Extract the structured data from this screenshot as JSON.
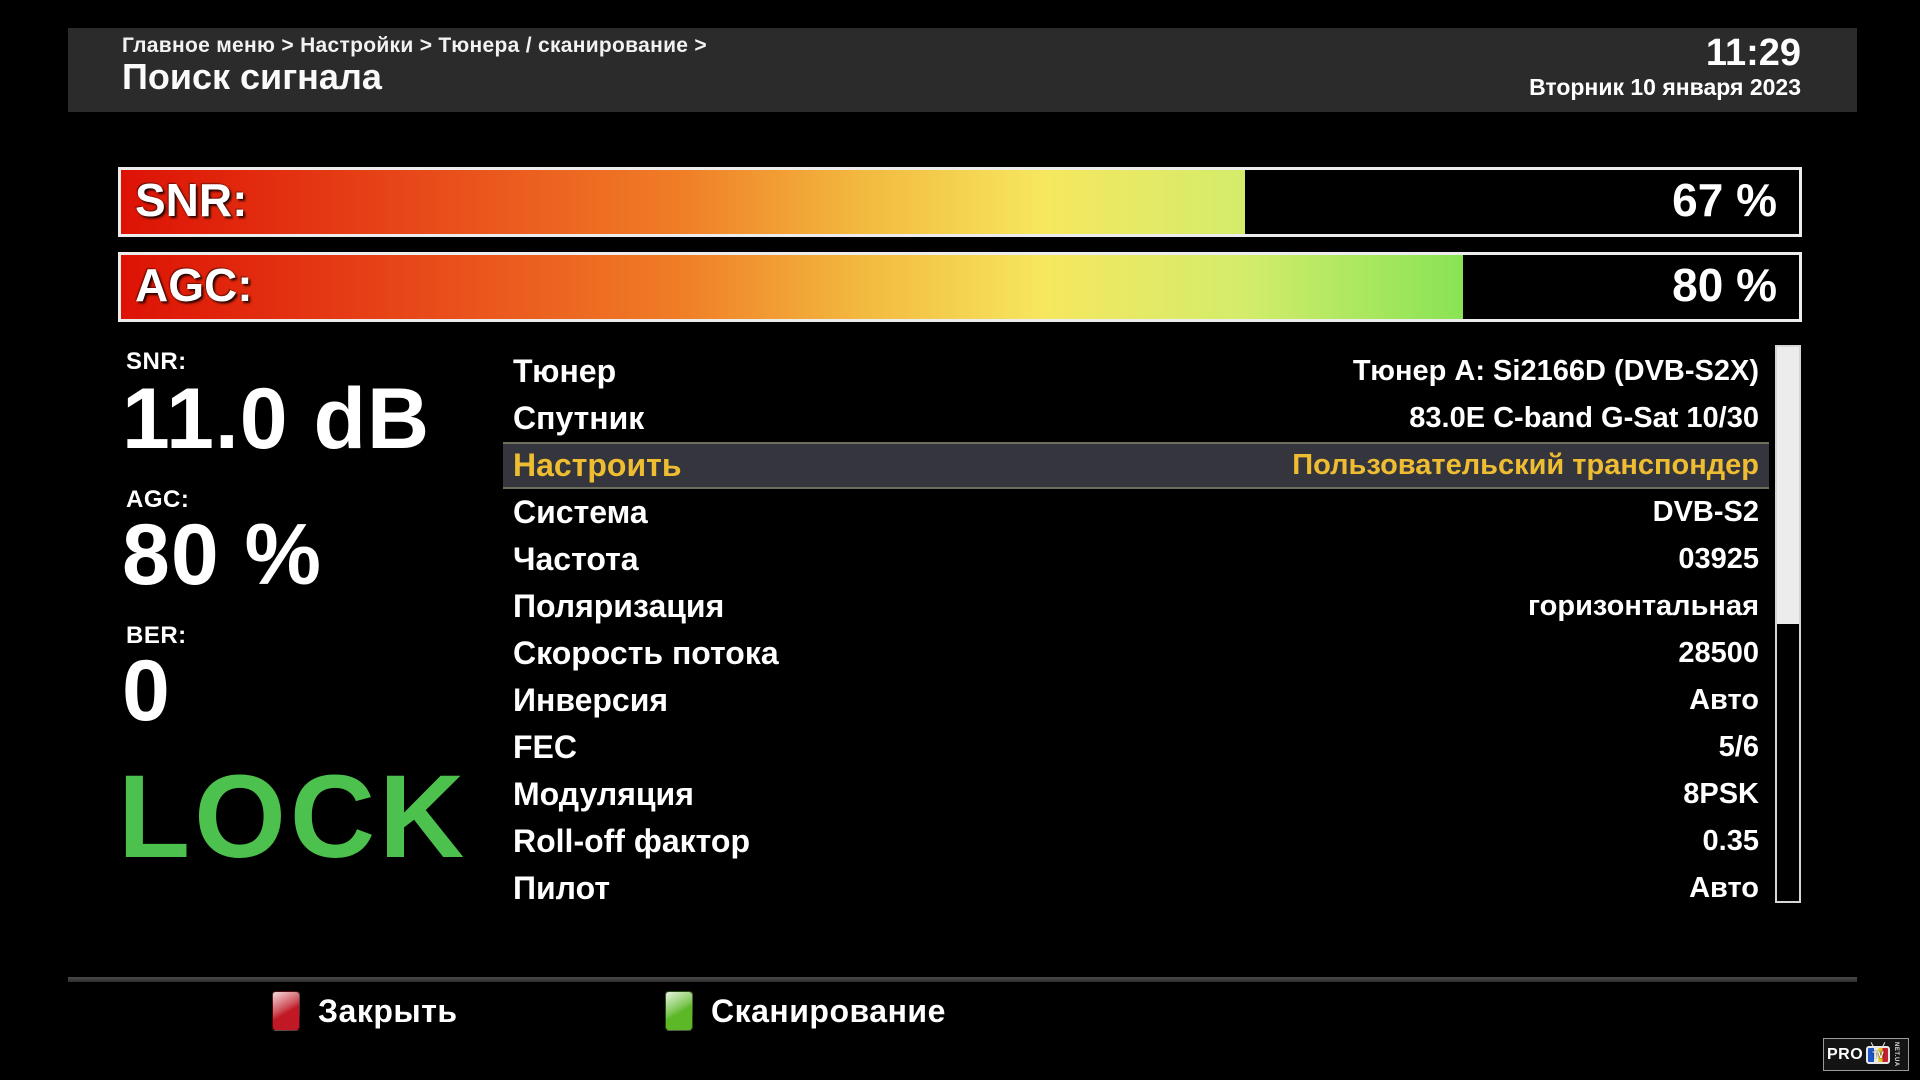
{
  "header": {
    "breadcrumb": "Главное меню > Настройки > Тюнера / сканирование >",
    "title": "Поиск сигнала",
    "clock": {
      "time": "11:29",
      "date": "Вторник 10 января 2023"
    }
  },
  "signal_bars": [
    {
      "id": "snr",
      "label": "SNR:",
      "percent": 67,
      "value_text": "67 %"
    },
    {
      "id": "agc",
      "label": "AGC:",
      "percent": 80,
      "value_text": "80 %"
    }
  ],
  "metrics": {
    "snr": {
      "label": "SNR:",
      "value": "11.0 dB"
    },
    "agc": {
      "label": "AGC:",
      "value": "80 %"
    },
    "ber": {
      "label": "BER:",
      "value": "0"
    }
  },
  "lock_status": "LOCK",
  "menu": {
    "selected_index": 2,
    "items": [
      {
        "label": "Тюнер",
        "value": "Тюнер A: Si2166D (DVB-S2X)"
      },
      {
        "label": "Спутник",
        "value": "83.0E C-band G-Sat 10/30"
      },
      {
        "label": "Настроить",
        "value": "Пользовательский транспондер"
      },
      {
        "label": "Система",
        "value": "DVB-S2"
      },
      {
        "label": "Частота",
        "value": "03925"
      },
      {
        "label": "Поляризация",
        "value": "горизонтальная"
      },
      {
        "label": "Скорость потока",
        "value": "28500"
      },
      {
        "label": "Инверсия",
        "value": "Авто"
      },
      {
        "label": "FEC",
        "value": "5/6"
      },
      {
        "label": "Модуляция",
        "value": "8PSK"
      },
      {
        "label": "Roll-off фактор",
        "value": "0.35"
      },
      {
        "label": "Пилот",
        "value": "Авто"
      }
    ]
  },
  "scrollbar": {
    "thumb_top_percent": 0,
    "thumb_height_percent": 50
  },
  "footer": {
    "actions": [
      {
        "key": "red",
        "label": "Закрыть"
      },
      {
        "key": "green",
        "label": "Сканирование"
      }
    ]
  },
  "logo": {
    "text_pro": "PRO",
    "text_tv": "TV",
    "text_side": "NET.UA"
  },
  "colors": {
    "header_bg": "#2b2b2b",
    "selected_row_bg": "#35353d",
    "selected_text": "#eebd31",
    "lock_green": "#4dc14d",
    "close_key_red": "#c01825",
    "scan_key_green": "#5cb827"
  }
}
